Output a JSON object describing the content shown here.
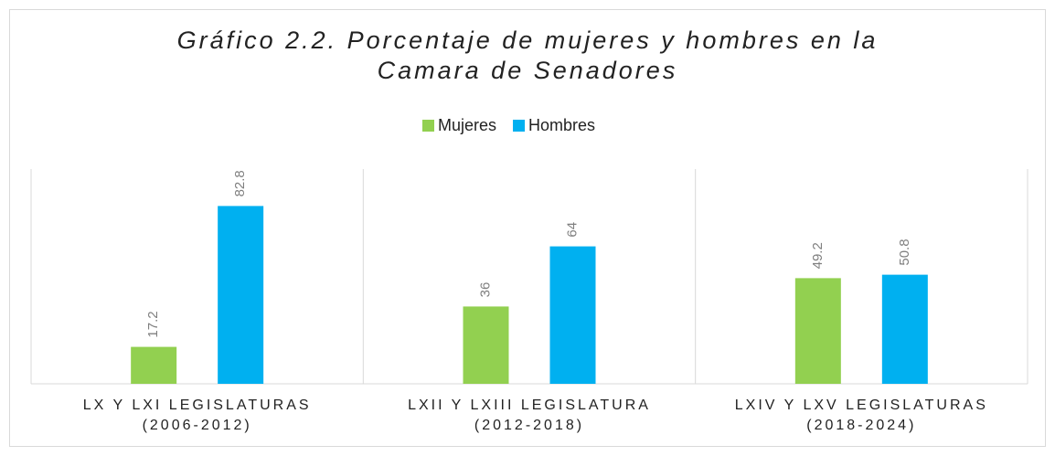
{
  "chart_data": {
    "type": "bar",
    "title": [
      "Gráfico 2.2. Porcentaje de mujeres y hombres en la",
      "Camara de Senadores"
    ],
    "categories": [
      [
        "LX Y LXI LEGISLATURAS",
        "(2006-2012)"
      ],
      [
        "LXII Y LXIII LEGISLATURA",
        "(2012-2018)"
      ],
      [
        "LXIV Y LXV LEGISLATURAS",
        "(2018-2024)"
      ]
    ],
    "series": [
      {
        "name": "Mujeres",
        "color": "#92d050",
        "values": [
          17.2,
          36,
          49.2
        ]
      },
      {
        "name": "Hombres",
        "color": "#00b0f0",
        "values": [
          82.8,
          64,
          50.8
        ]
      }
    ],
    "ylim": [
      0,
      100
    ]
  }
}
